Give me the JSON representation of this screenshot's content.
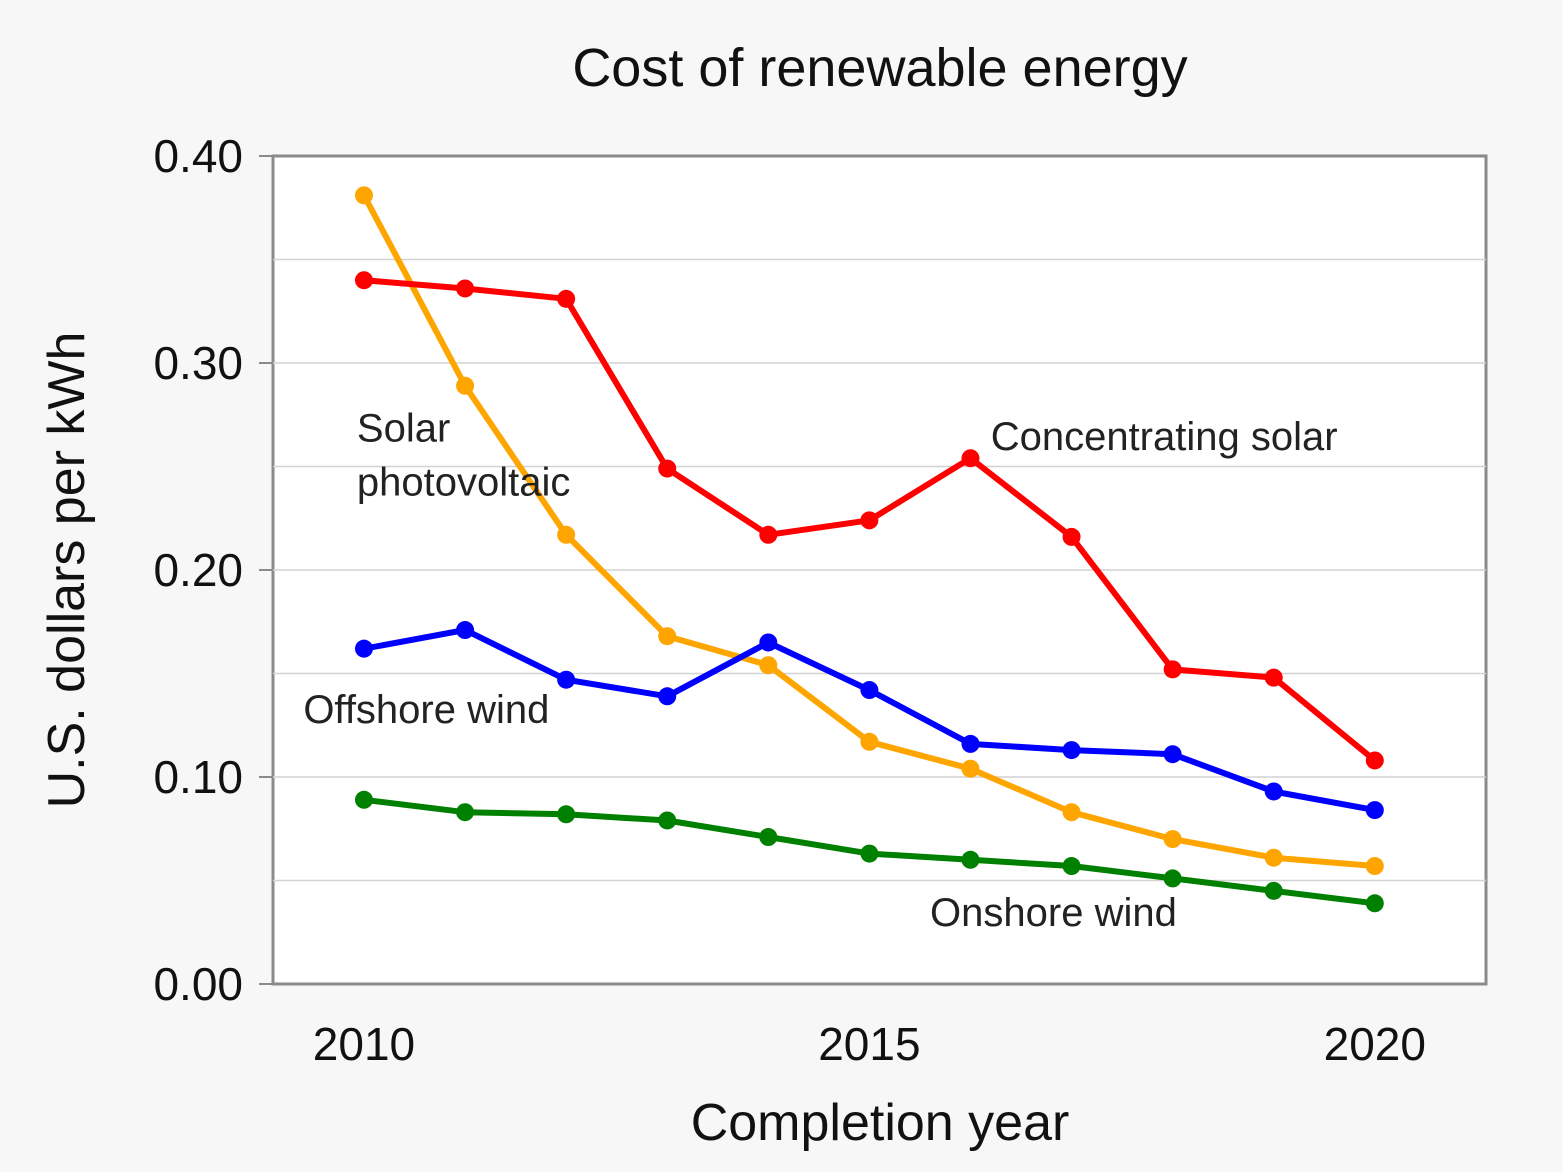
{
  "chart_data": {
    "type": "line",
    "title": "Cost of renewable energy",
    "xlabel": "Completion year",
    "ylabel": "U.S. dollars per kWh",
    "xlim": [
      2009.1,
      2021.1
    ],
    "ylim": [
      0,
      0.4
    ],
    "x_ticks": [
      2010,
      2015,
      2020
    ],
    "y_ticks": [
      0.0,
      0.1,
      0.2,
      0.3,
      0.4
    ],
    "y_tick_labels": [
      "0.00",
      "0.10",
      "0.20",
      "0.30",
      "0.40"
    ],
    "y_minor_grid": [
      0.05,
      0.15,
      0.25,
      0.35
    ],
    "grid": true,
    "legend": "inline labels",
    "x": [
      2010,
      2011,
      2012,
      2013,
      2014,
      2015,
      2016,
      2017,
      2018,
      2019,
      2020
    ],
    "series": [
      {
        "name": "Solar photovoltaic",
        "label_lines": [
          "Solar",
          "photovoltaic"
        ],
        "color": "#ffa500",
        "values": [
          0.381,
          0.289,
          0.217,
          0.168,
          0.154,
          0.117,
          0.104,
          0.083,
          0.07,
          0.061,
          0.057
        ]
      },
      {
        "name": "Concentrating solar",
        "label_lines": [
          "Concentrating solar"
        ],
        "color": "#ff0000",
        "values": [
          0.34,
          0.336,
          0.331,
          0.249,
          0.217,
          0.224,
          0.254,
          0.216,
          0.152,
          0.148,
          0.108
        ]
      },
      {
        "name": "Offshore wind",
        "label_lines": [
          "Offshore wind"
        ],
        "color": "#0000ff",
        "values": [
          0.162,
          0.171,
          0.147,
          0.139,
          0.165,
          0.142,
          0.116,
          0.113,
          0.111,
          0.093,
          0.084
        ]
      },
      {
        "name": "Onshore wind",
        "label_lines": [
          "Onshore wind"
        ],
        "color": "#008000",
        "values": [
          0.089,
          0.083,
          0.082,
          0.079,
          0.071,
          0.063,
          0.06,
          0.057,
          0.051,
          0.045,
          0.039
        ]
      }
    ]
  }
}
